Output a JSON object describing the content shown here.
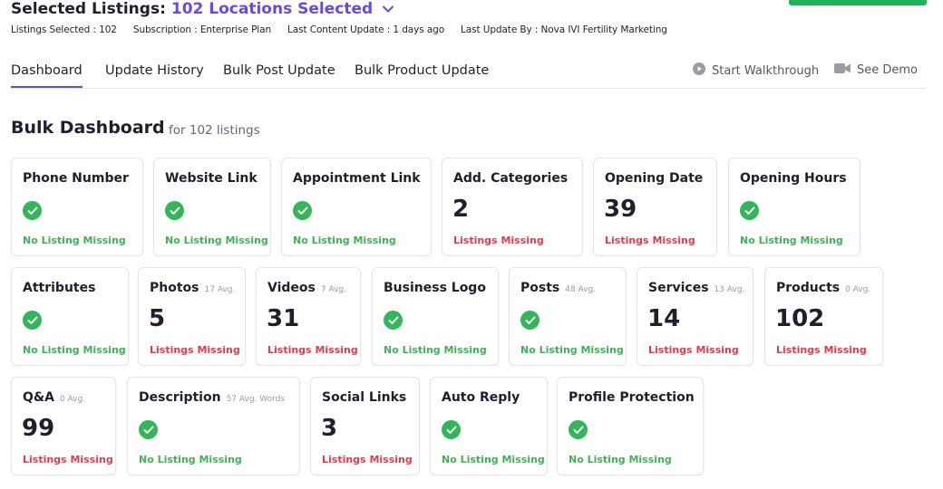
{
  "header": {
    "title_prefix": "Selected Listings:",
    "title_highlight": "102 Locations Selected"
  },
  "meta": {
    "listings_selected": "Listings Selected : 102",
    "subscription": "Subscription : Enterprise Plan",
    "last_content_update": "Last Content Update : 1 days ago",
    "last_update_by": "Last Update By : Nova IVI Fertility Marketing"
  },
  "tabs": [
    {
      "label": "Dashboard"
    },
    {
      "label": "Update History"
    },
    {
      "label": "Bulk Post Update"
    },
    {
      "label": "Bulk Product Update"
    }
  ],
  "actions": {
    "walkthrough": "Start Walkthrough",
    "demo": "See Demo"
  },
  "dashboard": {
    "title": "Bulk Dashboard",
    "subtitle": "for 102 listings"
  },
  "colors": {
    "accent": "#6c47e8",
    "success": "#3db454",
    "danger": "#e8394a"
  },
  "cards": [
    {
      "title": "Phone Number",
      "avg": "",
      "value": "",
      "status": "No Listing Missing"
    },
    {
      "title": "Website Link",
      "avg": "",
      "value": "",
      "status": "No Listing Missing"
    },
    {
      "title": "Appointment Link",
      "avg": "",
      "value": "",
      "status": "No Listing Missing"
    },
    {
      "title": "Add. Categories",
      "avg": "",
      "value": "2",
      "status": "Listings Missing"
    },
    {
      "title": "Opening Date",
      "avg": "",
      "value": "39",
      "status": "Listings Missing"
    },
    {
      "title": "Opening Hours",
      "avg": "",
      "value": "",
      "status": "No Listing Missing"
    },
    {
      "title": "Attributes",
      "avg": "",
      "value": "",
      "status": "No Listing Missing"
    },
    {
      "title": "Photos",
      "avg": "17 Avg.",
      "value": "5",
      "status": "Listings Missing"
    },
    {
      "title": "Videos",
      "avg": "7 Avg.",
      "value": "31",
      "status": "Listings Missing"
    },
    {
      "title": "Business Logo",
      "avg": "",
      "value": "",
      "status": "No Listing Missing"
    },
    {
      "title": "Posts",
      "avg": "48 Avg.",
      "value": "",
      "status": "No Listing Missing"
    },
    {
      "title": "Services",
      "avg": "13 Avg.",
      "value": "14",
      "status": "Listings Missing"
    },
    {
      "title": "Products",
      "avg": "0 Avg.",
      "value": "102",
      "status": "Listings Missing"
    },
    {
      "title": "Q&A",
      "avg": "0 Avg.",
      "value": "99",
      "status": "Listings Missing"
    },
    {
      "title": "Description",
      "avg": "57 Avg. Words",
      "value": "",
      "status": "No Listing Missing"
    },
    {
      "title": "Social Links",
      "avg": "",
      "value": "3",
      "status": "Listings Missing"
    },
    {
      "title": "Auto Reply",
      "avg": "",
      "value": "",
      "status": "No Listing Missing"
    },
    {
      "title": "Profile Protection",
      "avg": "",
      "value": "",
      "status": "No Listing Missing"
    }
  ]
}
